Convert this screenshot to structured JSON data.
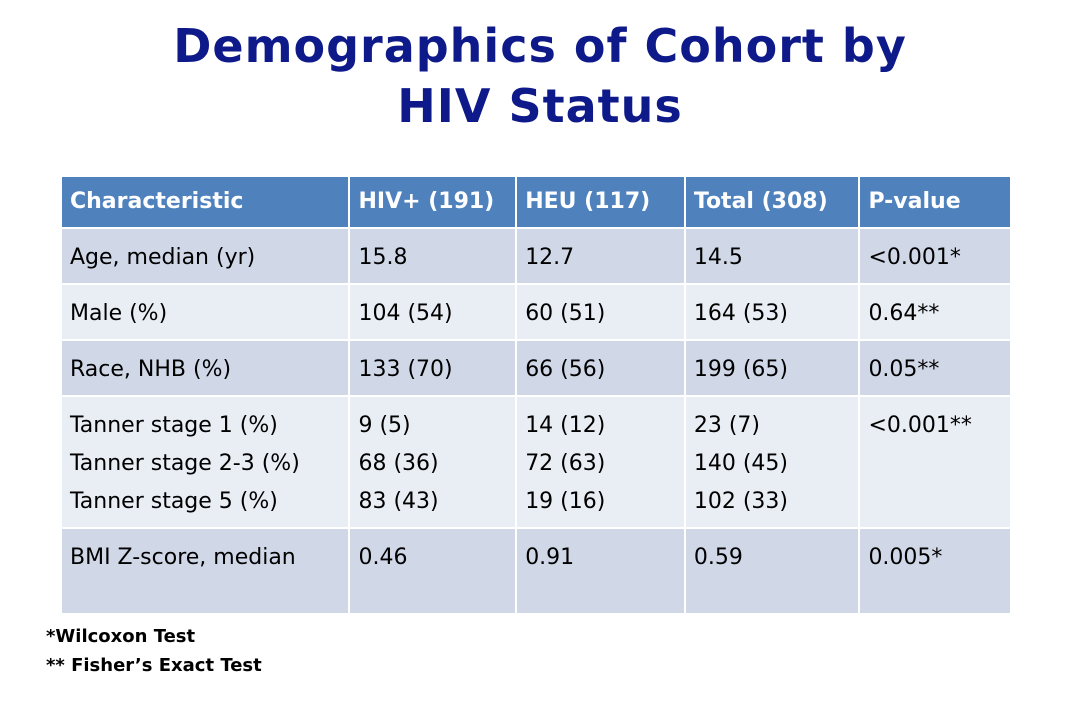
{
  "title_lines": [
    "Demographics of Cohort by",
    "HIV Status"
  ],
  "table": {
    "headers": [
      "Characteristic",
      "HIV+ (191)",
      "HEU (117)",
      "Total (308)",
      "P-value"
    ],
    "rows": [
      {
        "characteristic": [
          "Age, median (yr)"
        ],
        "hiv_pos": [
          "15.8"
        ],
        "heu": [
          "12.7"
        ],
        "total": [
          "14.5"
        ],
        "p_value": "<0.001*"
      },
      {
        "characteristic": [
          "Male (%)"
        ],
        "hiv_pos": [
          "104 (54)"
        ],
        "heu": [
          "60 (51)"
        ],
        "total": [
          "164 (53)"
        ],
        "p_value": "0.64**"
      },
      {
        "characteristic": [
          "Race, NHB (%)"
        ],
        "hiv_pos": [
          "133 (70)"
        ],
        "heu": [
          "66 (56)"
        ],
        "total": [
          "199 (65)"
        ],
        "p_value": "0.05**"
      },
      {
        "characteristic": [
          "Tanner stage 1 (%)",
          "Tanner stage 2-3 (%)",
          "Tanner stage 5 (%)"
        ],
        "hiv_pos": [
          "9 (5)",
          "68 (36)",
          "83 (43)"
        ],
        "heu": [
          "14 (12)",
          "72 (63)",
          "19 (16)"
        ],
        "total": [
          "23 (7)",
          "140 (45)",
          "102 (33)"
        ],
        "p_value": "<0.001**"
      },
      {
        "characteristic": [
          "BMI Z-score, median"
        ],
        "hiv_pos": [
          "0.46"
        ],
        "heu": [
          "0.91"
        ],
        "total": [
          "0.59"
        ],
        "p_value": "0.005*"
      }
    ]
  },
  "footnotes": [
    "*Wilcoxon Test",
    "** Fisher’s Exact Test"
  ]
}
